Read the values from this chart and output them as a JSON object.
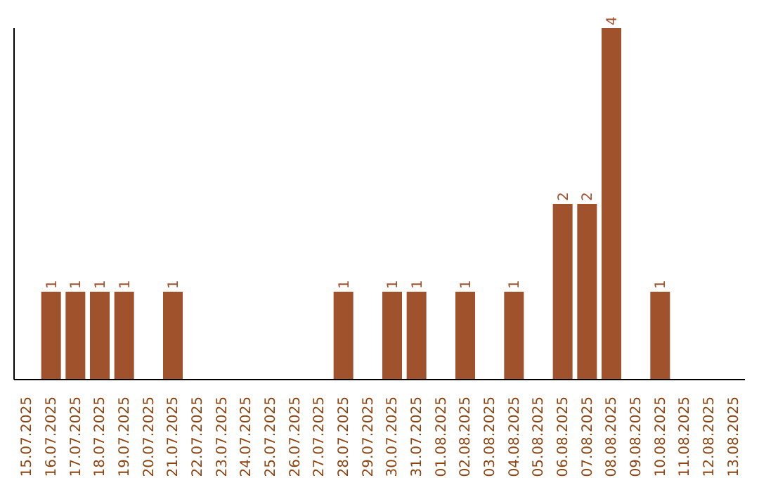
{
  "chart_data": {
    "type": "bar",
    "categories": [
      "15.07.2025",
      "16.07.2025",
      "17.07.2025",
      "18.07.2025",
      "19.07.2025",
      "20.07.2025",
      "21.07.2025",
      "22.07.2025",
      "23.07.2025",
      "24.07.2025",
      "25.07.2025",
      "26.07.2025",
      "27.07.2025",
      "28.07.2025",
      "29.07.2025",
      "30.07.2025",
      "31.07.2025",
      "01.08.2025",
      "02.08.2025",
      "03.08.2025",
      "04.08.2025",
      "05.08.2025",
      "06.08.2025",
      "07.08.2025",
      "08.08.2025",
      "09.08.2025",
      "10.08.2025",
      "11.08.2025",
      "12.08.2025",
      "13.08.2025"
    ],
    "values": [
      0,
      1,
      1,
      1,
      1,
      0,
      1,
      0,
      0,
      0,
      0,
      0,
      0,
      1,
      0,
      1,
      1,
      0,
      1,
      0,
      1,
      0,
      2,
      2,
      4,
      0,
      1,
      0,
      0,
      0
    ],
    "value_labels": [
      null,
      "1",
      "1",
      "1",
      "1",
      null,
      "1",
      null,
      null,
      null,
      null,
      null,
      null,
      "1",
      null,
      "1",
      "1",
      null,
      "1",
      null,
      "1",
      null,
      "2",
      "2",
      "4",
      null,
      "1",
      null,
      null,
      null
    ],
    "color": "#a0522d",
    "tick_labels": "x",
    "grid": false,
    "legend": false
  }
}
